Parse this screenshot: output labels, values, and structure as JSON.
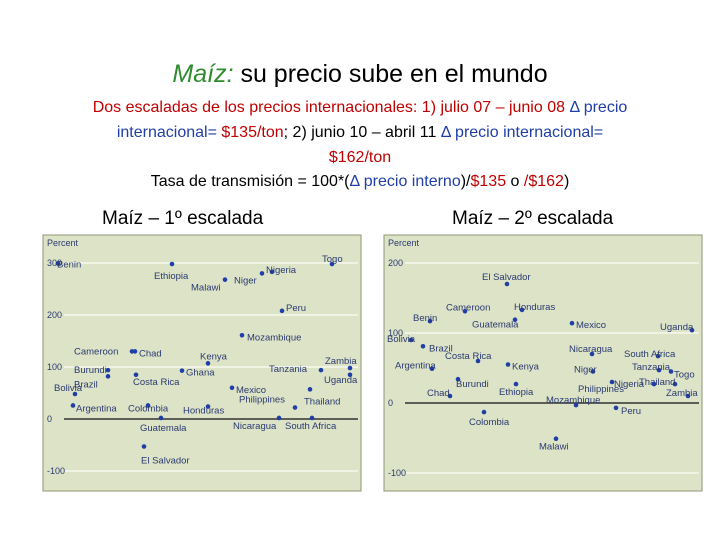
{
  "title": {
    "accent": "Maíz:",
    "rest": " su precio sube en el mundo"
  },
  "subtitle": {
    "line1_black": "Dos escaladas de los precios internacionales: 1) julio 07 – junio 08 ",
    "line1_blue": "Δ precio",
    "line2_blue": "internacional=",
    "line2_red": "$135/ton",
    "line2_black": "; 2) junio 10 – abril 11 ",
    "line2_blue2": "Δ precio internacional=",
    "line3_red": "$162/ton",
    "line4_a": "Tasa de transmisión = 100*(",
    "line4_b": "Δ precio interno",
    "line4_c": ")/",
    "line4_d": "$135",
    "line4_e": " o ",
    "line4_f": "/$162",
    "line4_g": ")"
  },
  "colors": {
    "panel_bg": "#dde3c6",
    "panel_border": "#8f9577",
    "dot": "#1f3ea8",
    "label": "#2a3a72",
    "accent": "#2e8b2e",
    "red": "#c00000"
  },
  "chart_data": [
    {
      "type": "scatter",
      "title": "Maíz – 1º escalada",
      "ylabel": "Percent",
      "yticks": [
        300,
        200,
        100,
        0,
        -100
      ],
      "ylim": [
        -110,
        310
      ],
      "grid": true,
      "points": [
        {
          "label": "Benin",
          "value": 299
        },
        {
          "label": "Ethiopia",
          "value": 298
        },
        {
          "label": "Togo",
          "value": 298
        },
        {
          "label": "Nigeria",
          "value": 283
        },
        {
          "label": "Niger",
          "value": 280
        },
        {
          "label": "Malawi",
          "value": 268
        },
        {
          "label": "Peru",
          "value": 208
        },
        {
          "label": "Mozambique",
          "value": 161
        },
        {
          "label": "Cameroon",
          "value": 130
        },
        {
          "label": "Chad",
          "value": 130
        },
        {
          "label": "Kenya",
          "value": 107
        },
        {
          "label": "Zambia",
          "value": 98
        },
        {
          "label": "Tanzania",
          "value": 94
        },
        {
          "label": "Burundi",
          "value": 94
        },
        {
          "label": "Ghana",
          "value": 93
        },
        {
          "label": "Costa Rica",
          "value": 85
        },
        {
          "label": "Uganda",
          "value": 85
        },
        {
          "label": "Brazil",
          "value": 82
        },
        {
          "label": "Mexico",
          "value": 60
        },
        {
          "label": "Thailand",
          "value": 57
        },
        {
          "label": "Bolivia",
          "value": 48
        },
        {
          "label": "Argentina",
          "value": 26
        },
        {
          "label": "Colombia",
          "value": 26
        },
        {
          "label": "Philippines",
          "value": 22
        },
        {
          "label": "Honduras",
          "value": 24
        },
        {
          "label": "Nicaragua",
          "value": 2
        },
        {
          "label": "South Africa",
          "value": 2
        },
        {
          "label": "Guatemala",
          "value": 2
        },
        {
          "label": "El Salvador",
          "value": -53
        }
      ]
    },
    {
      "type": "scatter",
      "title": "Maíz – 2º escalada",
      "ylabel": "Percent",
      "yticks": [
        200,
        100,
        0,
        -100
      ],
      "ylim": [
        -110,
        230
      ],
      "grid": true,
      "points": [
        {
          "label": "El Salvador",
          "value": 170
        },
        {
          "label": "Cameroon",
          "value": 131
        },
        {
          "label": "Honduras",
          "value": 133
        },
        {
          "label": "Benin",
          "value": 117
        },
        {
          "label": "Guatemala",
          "value": 119
        },
        {
          "label": "Mexico",
          "value": 114
        },
        {
          "label": "Uganda",
          "value": 104
        },
        {
          "label": "Bolivia",
          "value": 90
        },
        {
          "label": "Brazil",
          "value": 81
        },
        {
          "label": "Nicaragua",
          "value": 70
        },
        {
          "label": "South Africa",
          "value": 67
        },
        {
          "label": "Costa Rica",
          "value": 60
        },
        {
          "label": "Kenya",
          "value": 55
        },
        {
          "label": "Argentina",
          "value": 49
        },
        {
          "label": "Tanzania",
          "value": 47
        },
        {
          "label": "Niger",
          "value": 45
        },
        {
          "label": "Togo",
          "value": 45
        },
        {
          "label": "Burundi",
          "value": 34
        },
        {
          "label": "Philippines",
          "value": 30
        },
        {
          "label": "Thailand",
          "value": 27
        },
        {
          "label": "Ethiopia",
          "value": 27
        },
        {
          "label": "Nigeria",
          "value": 27
        },
        {
          "label": "Chad",
          "value": 10
        },
        {
          "label": "Zambia",
          "value": 10
        },
        {
          "label": "Mozambique",
          "value": -3
        },
        {
          "label": "Peru",
          "value": -7
        },
        {
          "label": "Colombia",
          "value": -13
        },
        {
          "label": "Malawi",
          "value": -51
        }
      ]
    }
  ]
}
